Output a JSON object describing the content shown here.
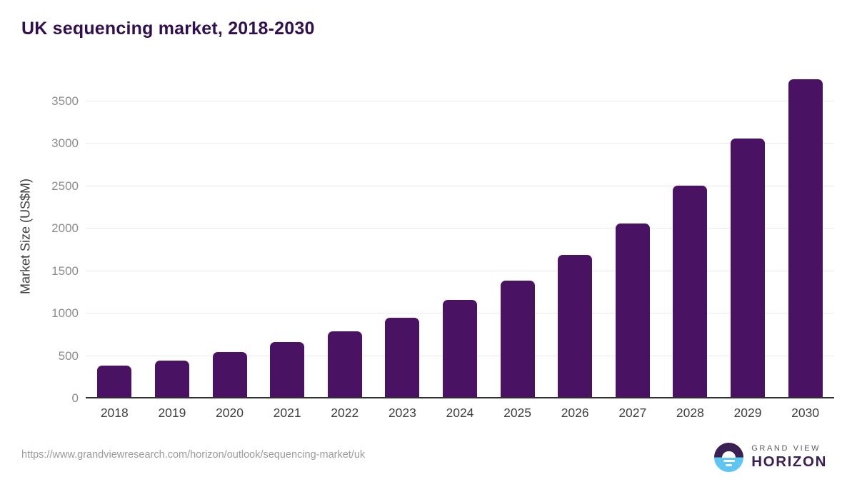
{
  "page": {
    "title": "UK sequencing market, 2018-2030",
    "source_url": "https://www.grandviewresearch.com/horizon/outlook/sequencing-market/uk"
  },
  "logo": {
    "brand_top": "GRAND VIEW",
    "brand_bottom": "HORIZON",
    "icon": "horizon-sun-over-water-icon"
  },
  "colors": {
    "bar": "#4a1263",
    "title": "#32104f",
    "axis_label": "#3f3f3f",
    "y_tick": "#8c8c8c",
    "x_tick": "#3f3f3f",
    "gridline": "#e9e9e9",
    "axis_line": "#2f2f33",
    "source_text": "#9b9b9b",
    "logo_purple": "#3b2153",
    "logo_blue": "#5ec6f2"
  },
  "chart_data": {
    "type": "bar",
    "title": "UK sequencing market, 2018-2030",
    "categories": [
      "2018",
      "2019",
      "2020",
      "2021",
      "2022",
      "2023",
      "2024",
      "2025",
      "2026",
      "2027",
      "2028",
      "2029",
      "2030"
    ],
    "values": [
      390,
      445,
      550,
      665,
      795,
      955,
      1160,
      1390,
      1695,
      2060,
      2510,
      3065,
      3760
    ],
    "xlabel": "",
    "ylabel": "Market Size (US$M)",
    "ylim": [
      0,
      3820
    ],
    "yticks": [
      0,
      500,
      1000,
      1500,
      2000,
      2500,
      3000,
      3500
    ],
    "grid": "horizontal-only",
    "legend": "none",
    "bar_color": "#4a1263"
  }
}
